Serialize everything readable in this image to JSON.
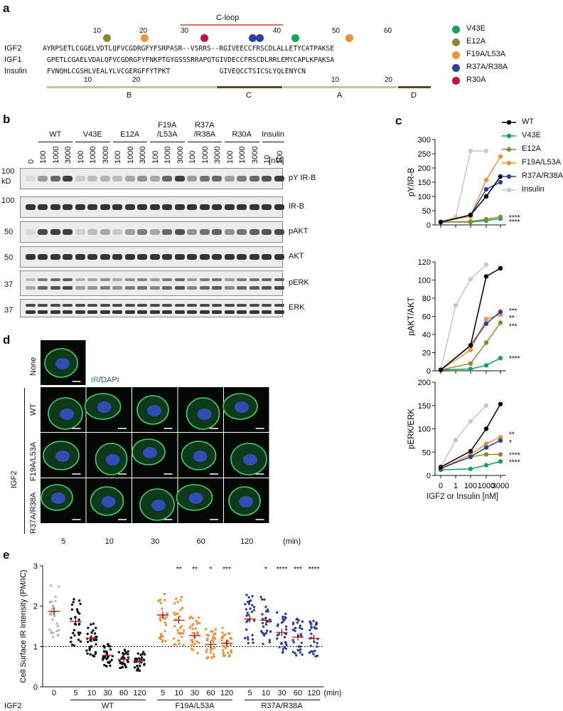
{
  "panel_a": {
    "label": "a",
    "cloop": "C-loop",
    "ruler_top": [
      "10",
      "20",
      "30",
      "40",
      "50",
      "60"
    ],
    "seq_names": [
      "IGF2",
      "IGF1",
      "Insulin"
    ],
    "seqs": [
      "AYRPSETLCGGELVDTLQFVCGDRGFYFSRPASR--VSRRS--RGIVEECCFRSCDLALLETYCATPAKSE",
      "GPETLCGAELVDALQFVCGDRGFYFNKPTGYGSSSRRAPQTGIVDECCFRSCDLRRLEMYCAPLKPAKSA",
      "FVNQHLCGSHLVEALYLVCGERGFFYTPKT            GIVEQCCTSICSLYQLENYCN"
    ],
    "ruler_bottom": [
      "10",
      "20",
      "10",
      "20"
    ],
    "domains": [
      "B",
      "C",
      "A",
      "D"
    ],
    "legend": [
      {
        "name": "V43E",
        "color": "#14a35c"
      },
      {
        "name": "E12A",
        "color": "#8b8b2e"
      },
      {
        "name": "F19A/L53A",
        "color": "#f0923a"
      },
      {
        "name": "R37A/R38A",
        "color": "#2f3f9e"
      },
      {
        "name": "R30A",
        "color": "#c0163e"
      }
    ]
  },
  "panel_b": {
    "label": "b",
    "groups": [
      "WT",
      "V43E",
      "E12A",
      "F19A\n/L53A",
      "R37A\n/R38A",
      "R30A",
      "Insulin"
    ],
    "lanes": [
      "0",
      "100",
      "1000",
      "3000",
      "100",
      "1000",
      "3000",
      "100",
      "1000",
      "3000",
      "100",
      "1000",
      "3000",
      "100",
      "1000",
      "3000",
      "100",
      "1000",
      "3000",
      "10",
      "100"
    ],
    "unit": "[nM]",
    "blots": [
      "pY IR-B",
      "IR-B",
      "pAKT",
      "AKT",
      "pERK",
      "ERK"
    ],
    "mw": [
      "100",
      "kD",
      "100",
      "50",
      "50",
      "37",
      "37"
    ]
  },
  "panel_c": {
    "label": "c",
    "xlabel": "IGF2 or Insulin [nM]",
    "xticks": [
      "0",
      "1",
      "100",
      "1000",
      "3000"
    ],
    "legend": [
      {
        "name": "WT",
        "color": "#000000"
      },
      {
        "name": "V43E",
        "color": "#14a35c"
      },
      {
        "name": "E12A",
        "color": "#8b8b2e"
      },
      {
        "name": "F19A/L53A",
        "color": "#f0923a"
      },
      {
        "name": "R37A/R38A",
        "color": "#2f3f9e"
      },
      {
        "name": "Insulin",
        "color": "#c8c8c8"
      }
    ]
  },
  "chart_data": [
    {
      "type": "line",
      "ylabel": "pY/IR-B",
      "x": [
        "0",
        "1",
        "100",
        "1000",
        "3000"
      ],
      "ylim": [
        0,
        300
      ],
      "yticks": [
        0,
        50,
        100,
        150,
        200,
        250,
        300
      ],
      "series": [
        {
          "name": "WT",
          "color": "#000000",
          "values": [
            10,
            null,
            35,
            100,
            170
          ]
        },
        {
          "name": "V43E",
          "color": "#14a35c",
          "values": [
            10,
            null,
            10,
            15,
            22
          ]
        },
        {
          "name": "E12A",
          "color": "#8b8b2e",
          "values": [
            10,
            null,
            12,
            20,
            28
          ]
        },
        {
          "name": "F19A/L53A",
          "color": "#f0923a",
          "values": [
            10,
            null,
            30,
            158,
            240
          ]
        },
        {
          "name": "R37A/R38A",
          "color": "#2f3f9e",
          "values": [
            10,
            null,
            35,
            125,
            150
          ]
        },
        {
          "name": "Insulin",
          "color": "#c8c8c8",
          "values": [
            10,
            28,
            260,
            260,
            null
          ]
        }
      ],
      "annotations": [
        "****",
        "****"
      ]
    },
    {
      "type": "line",
      "ylabel": "pAKT/AKT",
      "x": [
        "0",
        "1",
        "100",
        "1000",
        "3000"
      ],
      "ylim": [
        0,
        120
      ],
      "yticks": [
        0,
        20,
        40,
        60,
        80,
        100,
        120
      ],
      "series": [
        {
          "name": "WT",
          "color": "#000000",
          "values": [
            1,
            null,
            28,
            104,
            113
          ]
        },
        {
          "name": "V43E",
          "color": "#14a35c",
          "values": [
            1,
            null,
            2,
            6,
            14
          ]
        },
        {
          "name": "E12A",
          "color": "#8b8b2e",
          "values": [
            1,
            null,
            8,
            31,
            53
          ]
        },
        {
          "name": "F19A/L53A",
          "color": "#f0923a",
          "values": [
            1,
            null,
            23,
            57,
            62
          ]
        },
        {
          "name": "R37A/R38A",
          "color": "#2f3f9e",
          "values": [
            1,
            null,
            28,
            52,
            65
          ]
        },
        {
          "name": "Insulin",
          "color": "#c8c8c8",
          "values": [
            1,
            72,
            101,
            117,
            null
          ]
        }
      ],
      "annotations": [
        "***",
        "**",
        "***",
        "****"
      ]
    },
    {
      "type": "line",
      "ylabel": "pERK/ERK",
      "x": [
        "0",
        "1",
        "100",
        "1000",
        "3000"
      ],
      "ylim": [
        0,
        200
      ],
      "yticks": [
        0,
        50,
        100,
        150,
        200
      ],
      "series": [
        {
          "name": "WT",
          "color": "#000000",
          "values": [
            18,
            null,
            52,
            100,
            153
          ]
        },
        {
          "name": "V43E",
          "color": "#14a35c",
          "values": [
            12,
            null,
            14,
            22,
            30
          ]
        },
        {
          "name": "E12A",
          "color": "#8b8b2e",
          "values": [
            15,
            null,
            40,
            45,
            45
          ]
        },
        {
          "name": "F19A/L53A",
          "color": "#f0923a",
          "values": [
            15,
            null,
            45,
            68,
            82
          ]
        },
        {
          "name": "R37A/R38A",
          "color": "#2f3f9e",
          "values": [
            15,
            null,
            40,
            60,
            75
          ]
        },
        {
          "name": "Insulin",
          "color": "#c8c8c8",
          "values": [
            18,
            76,
            116,
            150,
            null
          ]
        }
      ],
      "annotations": [
        "**",
        "*",
        "****",
        "****"
      ]
    },
    {
      "type": "scatter",
      "ylabel": "Cell Surface IR Intensity (PM/IC)",
      "ylim": [
        0,
        3
      ],
      "yticks": [
        0,
        1,
        2,
        3
      ],
      "reference_line": 1,
      "categories": [
        "0",
        "5",
        "10",
        "30",
        "60",
        "120",
        "5",
        "10",
        "30",
        "60",
        "120",
        "5",
        "10",
        "30",
        "60",
        "120"
      ],
      "groups": [
        "IGF2",
        "WT",
        "F19A/L53A",
        "R37A/R38A"
      ],
      "unit": "(min)",
      "means": [
        1.87,
        1.62,
        1.2,
        0.78,
        0.68,
        0.64,
        1.78,
        1.65,
        1.27,
        1.05,
        1.08,
        1.68,
        1.65,
        1.35,
        1.23,
        1.2
      ],
      "colors": [
        "#b8b8b8",
        "#111111",
        "#111111",
        "#111111",
        "#111111",
        "#111111",
        "#f0923a",
        "#f0923a",
        "#f0923a",
        "#f0923a",
        "#f0923a",
        "#2f3f9e",
        "#2f3f9e",
        "#2f3f9e",
        "#2f3f9e",
        "#2f3f9e"
      ],
      "sig": [
        "",
        "",
        "",
        "",
        "",
        "",
        "",
        "**",
        "**",
        "*",
        "***",
        "",
        "*",
        "****",
        "***",
        "****"
      ]
    }
  ],
  "panel_d": {
    "label": "d",
    "stain_ir": "IR",
    "stain_sep": "/",
    "stain_dapi": "DAPI",
    "none": "None",
    "rows": [
      "WT",
      "F19A/L53A",
      "R37A/R38A"
    ],
    "group": "IGF2",
    "times": [
      "5",
      "10",
      "30",
      "60",
      "120"
    ],
    "unit": "(min)"
  },
  "panel_e": {
    "label": "e"
  }
}
